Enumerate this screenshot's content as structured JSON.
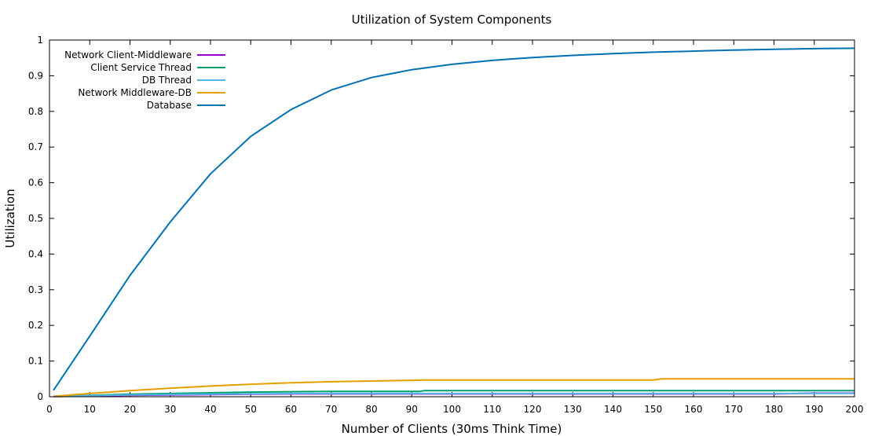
{
  "chart_data": {
    "type": "line",
    "title": "Utilization of System Components",
    "xlabel": "Number of Clients (30ms Think Time)",
    "ylabel": "Utilization",
    "xlim": [
      0,
      200
    ],
    "ylim": [
      0,
      1
    ],
    "xticks": [
      0,
      10,
      20,
      30,
      40,
      50,
      60,
      70,
      80,
      90,
      100,
      110,
      120,
      130,
      140,
      150,
      160,
      170,
      180,
      190,
      200
    ],
    "yticks": [
      0,
      0.1,
      0.2,
      0.3,
      0.4,
      0.5,
      0.6,
      0.7,
      0.8,
      0.9,
      1
    ],
    "ytick_labels": [
      "0",
      "0.1",
      "0.2",
      "0.3",
      "0.4",
      "0.5",
      "0.6",
      "0.7",
      "0.8",
      "0.9",
      "1"
    ],
    "grid": false,
    "legend_position": "top-left",
    "series": [
      {
        "name": "Network Client-Middleware",
        "color": "#9400d3",
        "x": [
          1,
          10,
          20,
          30,
          40,
          50,
          60,
          70,
          80,
          90,
          100,
          120,
          140,
          160,
          180,
          190,
          200
        ],
        "y": [
          0.0005,
          0.002,
          0.004,
          0.005,
          0.006,
          0.007,
          0.008,
          0.008,
          0.008,
          0.008,
          0.008,
          0.008,
          0.008,
          0.008,
          0.008,
          0.01,
          0.01
        ]
      },
      {
        "name": "Client Service Thread",
        "color": "#009e73",
        "x": [
          1,
          10,
          20,
          30,
          40,
          50,
          60,
          70,
          80,
          90,
          92,
          93,
          100,
          120,
          140,
          160,
          180,
          200
        ],
        "y": [
          0.001,
          0.004,
          0.007,
          0.009,
          0.011,
          0.013,
          0.014,
          0.015,
          0.015,
          0.015,
          0.015,
          0.017,
          0.017,
          0.017,
          0.017,
          0.017,
          0.017,
          0.017
        ]
      },
      {
        "name": "DB Thread",
        "color": "#56b4e9",
        "x": [
          1,
          10,
          20,
          30,
          40,
          50,
          60,
          70,
          80,
          90,
          100,
          120,
          140,
          160,
          180,
          200
        ],
        "y": [
          0.001,
          0.003,
          0.005,
          0.006,
          0.007,
          0.008,
          0.009,
          0.009,
          0.009,
          0.009,
          0.009,
          0.009,
          0.009,
          0.009,
          0.009,
          0.009
        ]
      },
      {
        "name": "Network Middleware-DB",
        "color": "#e69f00",
        "x": [
          1,
          10,
          20,
          30,
          40,
          50,
          60,
          70,
          80,
          90,
          93,
          100,
          110,
          120,
          130,
          140,
          150,
          152,
          160,
          170,
          180,
          190,
          200
        ],
        "y": [
          0.001,
          0.009,
          0.017,
          0.024,
          0.03,
          0.035,
          0.039,
          0.042,
          0.044,
          0.046,
          0.047,
          0.047,
          0.047,
          0.047,
          0.047,
          0.047,
          0.047,
          0.05,
          0.05,
          0.05,
          0.05,
          0.05,
          0.05
        ]
      },
      {
        "name": "Database",
        "color": "#0072b2",
        "x": [
          1,
          10,
          20,
          30,
          40,
          50,
          60,
          70,
          80,
          90,
          100,
          110,
          120,
          130,
          140,
          150,
          160,
          170,
          180,
          190,
          200
        ],
        "y": [
          0.018,
          0.17,
          0.34,
          0.49,
          0.625,
          0.73,
          0.805,
          0.86,
          0.895,
          0.917,
          0.932,
          0.943,
          0.951,
          0.957,
          0.962,
          0.966,
          0.969,
          0.972,
          0.974,
          0.976,
          0.977
        ]
      }
    ]
  }
}
